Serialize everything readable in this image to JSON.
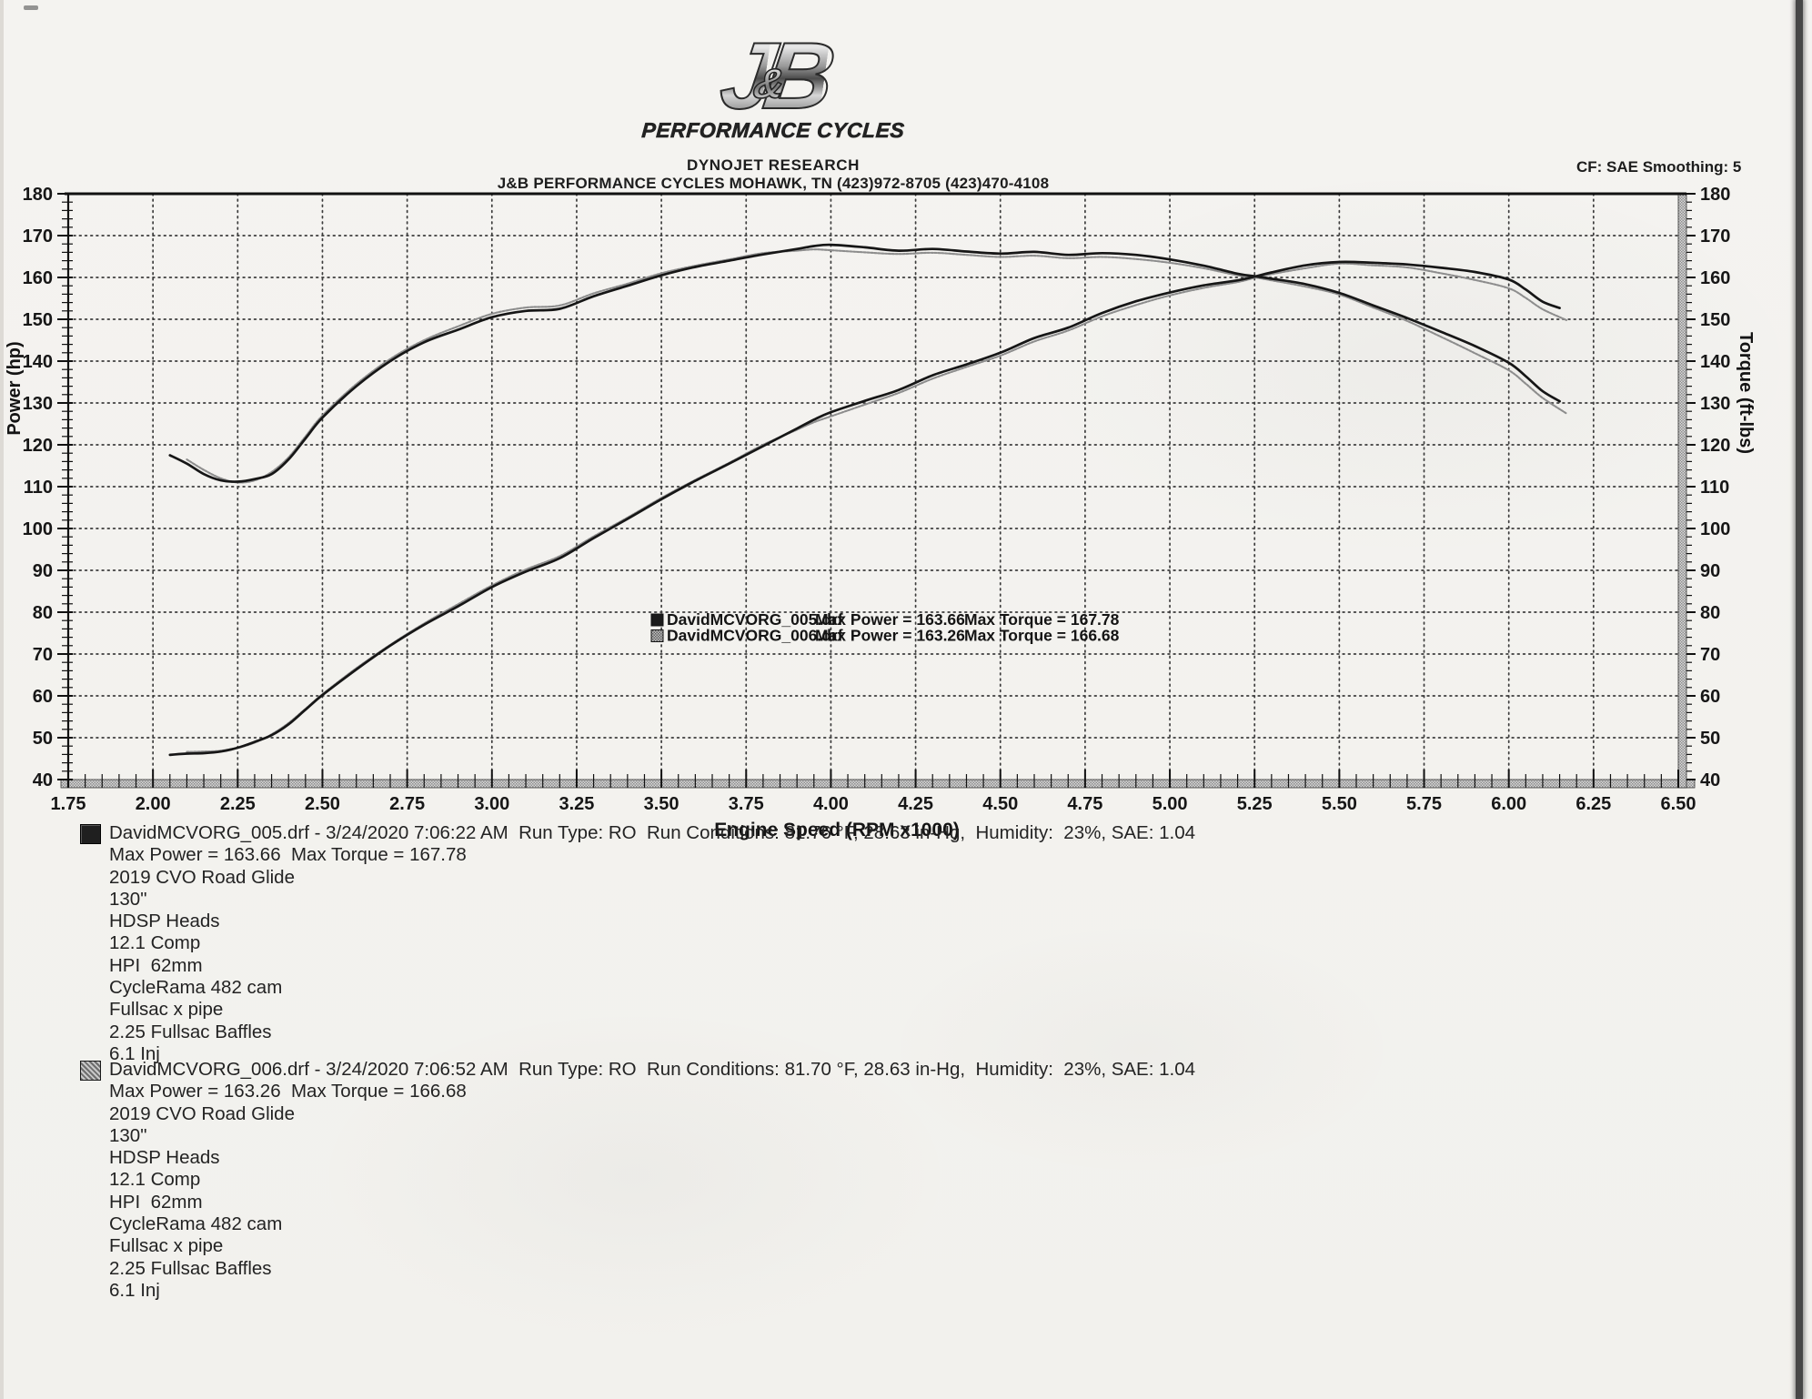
{
  "page": {
    "logo": {
      "j": "J",
      "amp": "&",
      "b": "B",
      "sub": "PERFORMANCE CYCLES"
    },
    "header_line1": "DYNOJET RESEARCH",
    "header_line2": "J&B PERFORMANCE CYCLES MOHAWK, TN  (423)972-8705 (423)470-4108",
    "corner_note": "CF: SAE  Smoothing: 5"
  },
  "chart_data": {
    "type": "line",
    "title": "",
    "xlabel": "Engine Speed (RPM x1000)",
    "ylabel_left": "Power (hp)",
    "ylabel_right": "Torque (ft-lbs)",
    "xlim": [
      1.75,
      6.5
    ],
    "ylim": [
      40,
      180
    ],
    "x_tick_step": 0.25,
    "x_minor_step": 0.05,
    "y_tick_step": 10,
    "y_minor_step": 2,
    "grid": "dotted",
    "legend_position": "center",
    "colors": {
      "run005": "#161616",
      "run006": "#8d8d8d",
      "grid": "#3c3c3c",
      "frame": "#111111"
    },
    "legend": [
      {
        "file": "DavidMCVORG_005.drf",
        "power": "Max Power = 163.66",
        "torque": "Max Torque = 167.78",
        "swatch": "dark"
      },
      {
        "file": "DavidMCVORG_006.drf",
        "power": "Max Power = 163.26",
        "torque": "Max Torque = 166.68",
        "swatch": "gray"
      }
    ],
    "series": [
      {
        "name": "Run 006 torque (ft-lbs)",
        "run": "run006",
        "style": "dotted",
        "x": [
          2.1,
          2.15,
          2.2,
          2.25,
          2.3,
          2.35,
          2.4,
          2.45,
          2.5,
          2.6,
          2.7,
          2.8,
          2.9,
          3.0,
          3.1,
          3.2,
          3.3,
          3.4,
          3.5,
          3.6,
          3.7,
          3.8,
          3.9,
          3.95,
          4.0,
          4.1,
          4.2,
          4.3,
          4.4,
          4.5,
          4.6,
          4.7,
          4.8,
          4.9,
          5.0,
          5.1,
          5.2,
          5.25,
          5.3,
          5.4,
          5.5,
          5.6,
          5.7,
          5.8,
          5.9,
          6.0,
          6.05,
          6.1,
          6.17
        ],
        "y": [
          116.5,
          114.0,
          112.0,
          111.0,
          111.5,
          113.5,
          117.0,
          122.0,
          127.0,
          134.5,
          140.5,
          145.0,
          148.3,
          151.3,
          152.8,
          153.3,
          156.2,
          158.5,
          161.0,
          162.8,
          164.3,
          165.8,
          166.4,
          166.7,
          166.5,
          166.0,
          165.6,
          165.9,
          165.4,
          164.9,
          165.2,
          164.6,
          164.9,
          164.4,
          163.5,
          162.2,
          160.5,
          160.0,
          159.3,
          157.8,
          155.9,
          152.8,
          149.6,
          145.8,
          141.9,
          137.8,
          134.6,
          131.2,
          127.5
        ]
      },
      {
        "name": "Run 006 power (hp)",
        "run": "run006",
        "style": "dotted",
        "x": [
          2.1,
          2.15,
          2.2,
          2.25,
          2.3,
          2.35,
          2.4,
          2.45,
          2.5,
          2.6,
          2.7,
          2.8,
          2.9,
          3.0,
          3.1,
          3.2,
          3.3,
          3.4,
          3.5,
          3.6,
          3.7,
          3.8,
          3.9,
          3.95,
          4.0,
          4.1,
          4.2,
          4.3,
          4.4,
          4.5,
          4.6,
          4.7,
          4.8,
          4.9,
          5.0,
          5.1,
          5.2,
          5.25,
          5.3,
          5.4,
          5.5,
          5.6,
          5.7,
          5.8,
          5.9,
          6.0,
          6.05,
          6.1,
          6.17
        ],
        "y": [
          46.6,
          46.7,
          46.9,
          47.6,
          48.8,
          50.8,
          53.5,
          56.9,
          60.4,
          66.6,
          72.2,
          77.3,
          81.9,
          86.4,
          90.2,
          93.4,
          98.1,
          102.6,
          107.3,
          111.6,
          115.7,
          120.0,
          123.6,
          125.4,
          126.8,
          129.6,
          132.4,
          135.8,
          138.6,
          141.3,
          144.7,
          147.3,
          150.7,
          153.4,
          155.7,
          157.5,
          158.9,
          159.9,
          160.8,
          162.2,
          163.3,
          162.9,
          162.4,
          161.0,
          159.4,
          157.4,
          155.1,
          152.4,
          149.8
        ]
      },
      {
        "name": "Run 005 torque (ft-lbs)",
        "run": "run005",
        "style": "solid",
        "x": [
          2.05,
          2.1,
          2.15,
          2.2,
          2.25,
          2.3,
          2.35,
          2.4,
          2.45,
          2.5,
          2.6,
          2.7,
          2.8,
          2.9,
          3.0,
          3.1,
          3.2,
          3.3,
          3.4,
          3.5,
          3.6,
          3.7,
          3.8,
          3.9,
          3.95,
          4.0,
          4.1,
          4.2,
          4.3,
          4.4,
          4.5,
          4.6,
          4.7,
          4.8,
          4.9,
          5.0,
          5.1,
          5.2,
          5.25,
          5.3,
          5.4,
          5.5,
          5.6,
          5.7,
          5.8,
          5.9,
          6.0,
          6.05,
          6.1,
          6.15
        ],
        "y": [
          117.5,
          115.5,
          113.0,
          111.5,
          111.2,
          111.8,
          113.0,
          116.5,
          121.5,
          126.5,
          134.0,
          140.0,
          144.5,
          147.5,
          150.5,
          152.0,
          152.5,
          155.5,
          158.0,
          160.5,
          162.5,
          164.0,
          165.5,
          166.8,
          167.5,
          167.8,
          167.2,
          166.4,
          166.8,
          166.2,
          165.7,
          166.1,
          165.4,
          165.8,
          165.4,
          164.3,
          162.8,
          160.9,
          160.3,
          159.7,
          158.4,
          156.3,
          153.3,
          150.3,
          147.0,
          143.6,
          139.6,
          136.4,
          132.8,
          130.4
        ]
      },
      {
        "name": "Run 005 power (hp)",
        "run": "run005",
        "style": "solid",
        "x": [
          2.05,
          2.1,
          2.15,
          2.2,
          2.25,
          2.3,
          2.35,
          2.4,
          2.45,
          2.5,
          2.6,
          2.7,
          2.8,
          2.9,
          3.0,
          3.1,
          3.2,
          3.3,
          3.4,
          3.5,
          3.6,
          3.7,
          3.8,
          3.9,
          3.95,
          4.0,
          4.1,
          4.2,
          4.3,
          4.4,
          4.5,
          4.6,
          4.7,
          4.8,
          4.9,
          5.0,
          5.1,
          5.2,
          5.25,
          5.3,
          5.4,
          5.5,
          5.6,
          5.7,
          5.8,
          5.9,
          6.0,
          6.05,
          6.1,
          6.15
        ],
        "y": [
          45.9,
          46.2,
          46.3,
          46.7,
          47.6,
          49.0,
          50.6,
          53.2,
          56.7,
          60.2,
          66.3,
          72.0,
          77.0,
          81.4,
          86.0,
          89.7,
          92.9,
          97.7,
          102.3,
          107.0,
          111.4,
          115.5,
          119.7,
          123.9,
          126.0,
          127.8,
          130.5,
          133.1,
          136.6,
          139.2,
          142.0,
          145.5,
          148.0,
          151.5,
          154.3,
          156.4,
          158.1,
          159.3,
          160.2,
          161.2,
          162.9,
          163.7,
          163.5,
          163.1,
          162.3,
          161.3,
          159.5,
          157.1,
          154.2,
          152.7
        ]
      }
    ]
  },
  "runs": [
    {
      "swatch": "dark",
      "header": "DavidMCVORG_005.drf - 3/24/2020 7:06:22 AM  Run Type: RO  Run Conditions: 81.76 °F, 28.63 in-Hg,  Humidity:  23%, SAE: 1.04",
      "max_line": "Max Power = 163.66  Max Torque = 167.78",
      "specs": [
        "2019 CVO Road Glide",
        "130\"",
        "HDSP Heads",
        "12.1 Comp",
        "HPI  62mm",
        "CycleRama 482 cam",
        "Fullsac x pipe",
        "2.25 Fullsac Baffles",
        "6.1 Inj"
      ]
    },
    {
      "swatch": "gray",
      "header": "DavidMCVORG_006.drf - 3/24/2020 7:06:52 AM  Run Type: RO  Run Conditions: 81.70 °F, 28.63 in-Hg,  Humidity:  23%, SAE: 1.04",
      "max_line": "Max Power = 163.26  Max Torque = 166.68",
      "specs": [
        "2019 CVO Road Glide",
        "130\"",
        "HDSP Heads",
        "12.1 Comp",
        "HPI  62mm",
        "CycleRama 482 cam",
        "Fullsac x pipe",
        "2.25 Fullsac Baffles",
        "6.1 Inj"
      ]
    }
  ]
}
